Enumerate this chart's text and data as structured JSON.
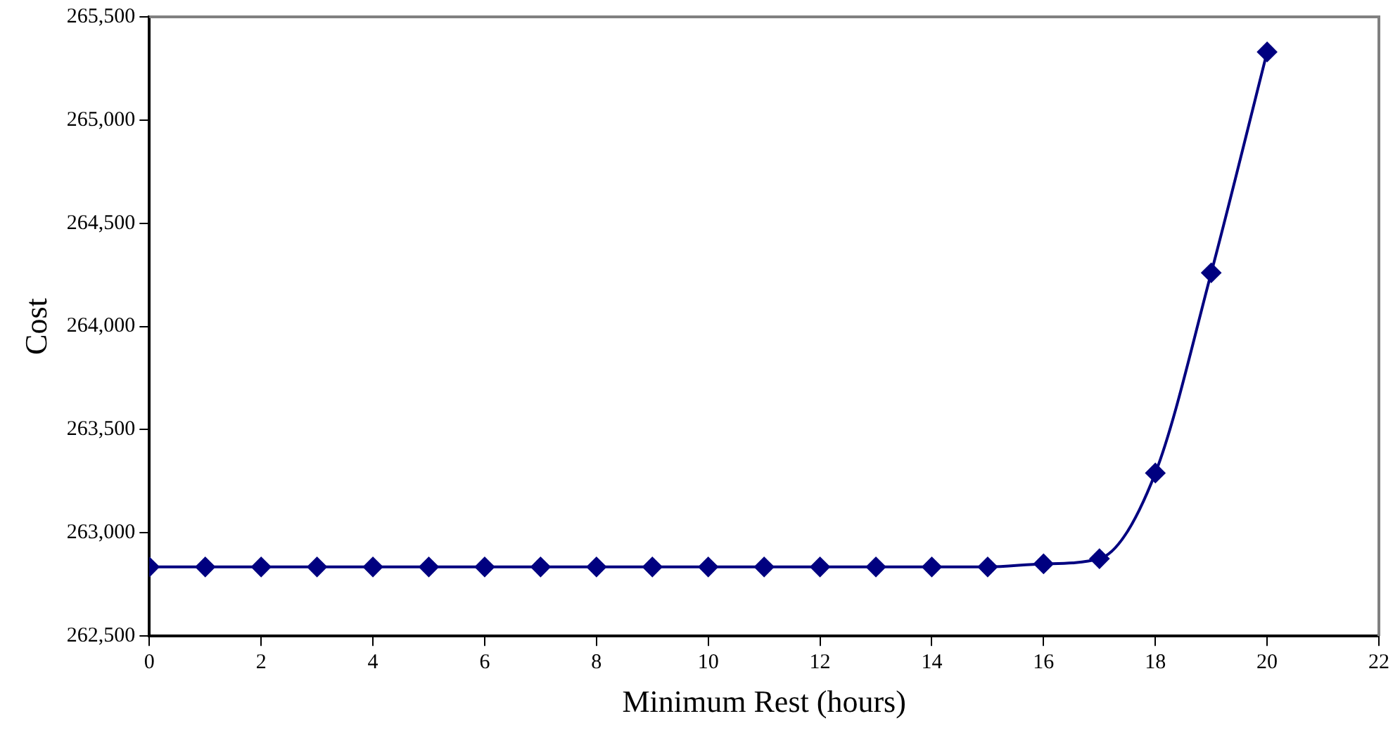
{
  "chart_data": {
    "type": "line",
    "xlabel": "Minimum Rest (hours)",
    "ylabel": "Cost",
    "x": [
      0,
      1,
      2,
      3,
      4,
      5,
      6,
      7,
      8,
      9,
      10,
      11,
      12,
      13,
      14,
      15,
      16,
      17,
      18,
      19,
      20
    ],
    "series": [
      {
        "color": "#000080",
        "values": [
          262835,
          262835,
          262835,
          262835,
          262835,
          262835,
          262835,
          262835,
          262835,
          262835,
          262835,
          262835,
          262835,
          262835,
          262835,
          262835,
          262850,
          262875,
          263290,
          264260,
          265330
        ]
      }
    ],
    "xlim": [
      0,
      22
    ],
    "xticks": [
      0,
      2,
      4,
      6,
      8,
      10,
      12,
      14,
      16,
      18,
      20,
      22
    ],
    "ylim": [
      262500,
      265500
    ],
    "yticks": [
      {
        "value": 262500,
        "label": "262,500"
      },
      {
        "value": 263000,
        "label": "263,000"
      },
      {
        "value": 263500,
        "label": "263,500"
      },
      {
        "value": 264000,
        "label": "264,000"
      },
      {
        "value": 264500,
        "label": "264,500"
      },
      {
        "value": 265000,
        "label": "265,000"
      },
      {
        "value": 265500,
        "label": "265,500"
      }
    ],
    "grid": false,
    "legend": false,
    "marker": "diamond",
    "line_style": "solid"
  }
}
